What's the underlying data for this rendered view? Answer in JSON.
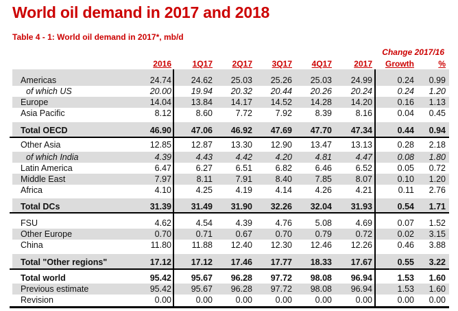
{
  "title": "World oil demand in 2017 and 2018",
  "subtitle": "Table 4 - 1: World oil demand in 2017*, mb/d",
  "header": {
    "change_label": "Change 2017/16",
    "columns": [
      "2016",
      "1Q17",
      "2Q17",
      "3Q17",
      "4Q17",
      "2017",
      "Growth",
      "%"
    ]
  },
  "rows": [
    {
      "label": "Americas",
      "values": [
        "24.74",
        "24.62",
        "25.03",
        "25.26",
        "25.03",
        "24.99",
        "0.24",
        "0.99"
      ]
    },
    {
      "label": "of which US",
      "values": [
        "20.00",
        "19.94",
        "20.32",
        "20.44",
        "20.26",
        "20.24",
        "0.24",
        "1.20"
      ]
    },
    {
      "label": "Europe",
      "values": [
        "14.04",
        "13.84",
        "14.17",
        "14.52",
        "14.28",
        "14.20",
        "0.16",
        "1.13"
      ]
    },
    {
      "label": "Asia Pacific",
      "values": [
        "8.12",
        "8.60",
        "7.72",
        "7.92",
        "8.39",
        "8.16",
        "0.04",
        "0.45"
      ]
    },
    {
      "label": "Total OECD",
      "values": [
        "46.90",
        "47.06",
        "46.92",
        "47.69",
        "47.70",
        "47.34",
        "0.44",
        "0.94"
      ]
    },
    {
      "label": "Other Asia",
      "values": [
        "12.85",
        "12.87",
        "13.30",
        "12.90",
        "13.47",
        "13.13",
        "0.28",
        "2.18"
      ]
    },
    {
      "label": "of which India",
      "values": [
        "4.39",
        "4.43",
        "4.42",
        "4.20",
        "4.81",
        "4.47",
        "0.08",
        "1.80"
      ]
    },
    {
      "label": "Latin America",
      "values": [
        "6.47",
        "6.27",
        "6.51",
        "6.82",
        "6.46",
        "6.52",
        "0.05",
        "0.72"
      ]
    },
    {
      "label": "Middle East",
      "values": [
        "7.97",
        "8.11",
        "7.91",
        "8.40",
        "7.85",
        "8.07",
        "0.10",
        "1.20"
      ]
    },
    {
      "label": "Africa",
      "values": [
        "4.10",
        "4.25",
        "4.19",
        "4.14",
        "4.26",
        "4.21",
        "0.11",
        "2.76"
      ]
    },
    {
      "label": "Total DCs",
      "values": [
        "31.39",
        "31.49",
        "31.90",
        "32.26",
        "32.04",
        "31.93",
        "0.54",
        "1.71"
      ]
    },
    {
      "label": "FSU",
      "values": [
        "4.62",
        "4.54",
        "4.39",
        "4.76",
        "5.08",
        "4.69",
        "0.07",
        "1.52"
      ]
    },
    {
      "label": "Other Europe",
      "values": [
        "0.70",
        "0.71",
        "0.67",
        "0.70",
        "0.79",
        "0.72",
        "0.02",
        "3.15"
      ]
    },
    {
      "label": "China",
      "values": [
        "11.80",
        "11.88",
        "12.40",
        "12.30",
        "12.46",
        "12.26",
        "0.46",
        "3.88"
      ]
    },
    {
      "label": "Total \"Other regions\"",
      "values": [
        "17.12",
        "17.12",
        "17.46",
        "17.77",
        "18.33",
        "17.67",
        "0.55",
        "3.22"
      ]
    },
    {
      "label": "Total world",
      "values": [
        "95.42",
        "95.67",
        "96.28",
        "97.72",
        "98.08",
        "96.94",
        "1.53",
        "1.60"
      ]
    },
    {
      "label": "Previous estimate",
      "values": [
        "95.42",
        "95.67",
        "96.28",
        "97.72",
        "98.08",
        "96.94",
        "1.53",
        "1.60"
      ]
    },
    {
      "label": "Revision",
      "values": [
        "0.00",
        "0.00",
        "0.00",
        "0.00",
        "0.00",
        "0.00",
        "0.00",
        "0.00"
      ]
    }
  ]
}
